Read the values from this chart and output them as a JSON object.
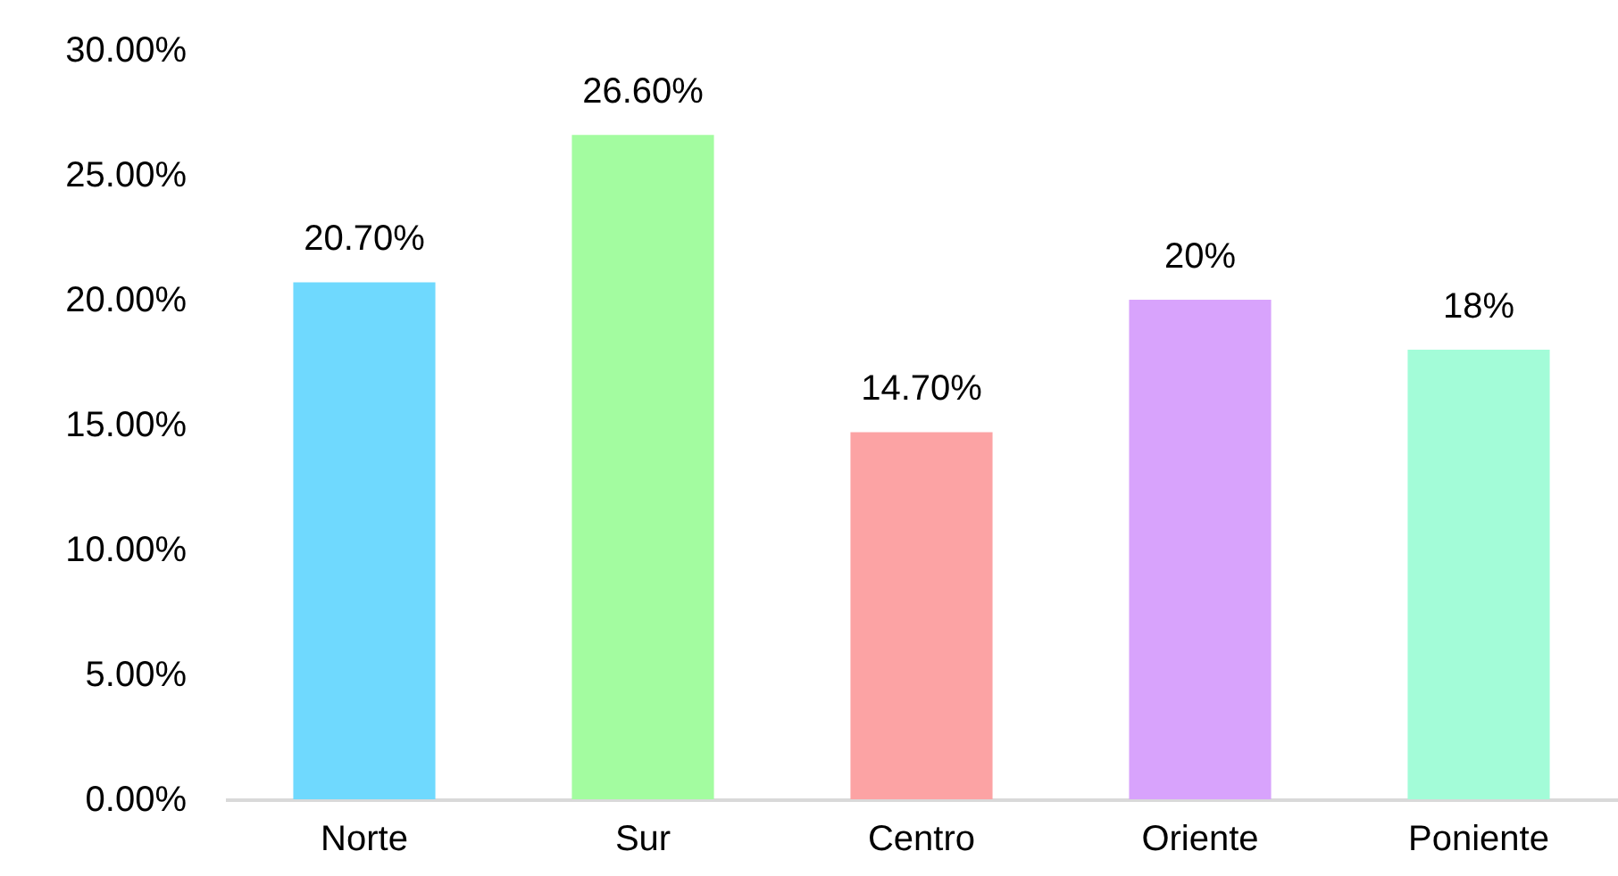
{
  "chart_data": {
    "type": "bar",
    "categories": [
      "Norte",
      "Sur",
      "Centro",
      "Oriente",
      "Poniente"
    ],
    "values": [
      20.7,
      26.6,
      14.7,
      20,
      18
    ],
    "colors": [
      "#6fd9fe",
      "#a3fca0",
      "#fca3a4",
      "#d8a3fc",
      "#a3fcd8"
    ],
    "value_labels": [
      "20.70%",
      "26.60%",
      "14.70%",
      "20%",
      "18%"
    ],
    "ylim": [
      0,
      30
    ],
    "yticks": [
      {
        "value": 0,
        "label": "0.00%"
      },
      {
        "value": 5,
        "label": "5.00%"
      },
      {
        "value": 10,
        "label": "10.00%"
      },
      {
        "value": 15,
        "label": "15.00%"
      },
      {
        "value": 20,
        "label": "20.00%"
      },
      {
        "value": 25,
        "label": "25.00%"
      },
      {
        "value": 30,
        "label": "30.00%"
      }
    ],
    "grid": false
  }
}
